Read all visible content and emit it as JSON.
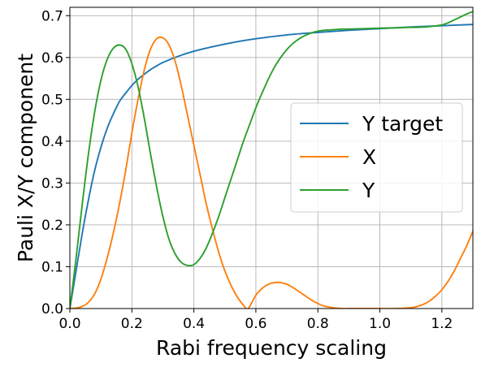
{
  "chart_data": {
    "type": "line",
    "title": "",
    "xlabel": "Rabi frequency scaling",
    "ylabel": "Pauli X/Y component",
    "xlim": [
      0.0,
      1.3
    ],
    "ylim": [
      0.0,
      0.72
    ],
    "xticks": [
      0.0,
      0.2,
      0.4,
      0.6,
      0.8,
      1.0,
      1.2
    ],
    "xtick_labels": [
      "0.0",
      "0.2",
      "0.4",
      "0.6",
      "0.8",
      "1.0",
      "1.2"
    ],
    "yticks": [
      0.0,
      0.1,
      0.2,
      0.3,
      0.4,
      0.5,
      0.6,
      0.7
    ],
    "ytick_labels": [
      "0.0",
      "0.1",
      "0.2",
      "0.3",
      "0.4",
      "0.5",
      "0.6",
      "0.7"
    ],
    "grid": true,
    "legend_position": "center-right",
    "series": [
      {
        "name": "Y target",
        "color": "#1f77b4",
        "x": [
          0.0,
          0.02,
          0.04,
          0.06,
          0.08,
          0.1,
          0.12,
          0.14,
          0.16,
          0.18,
          0.2,
          0.22,
          0.24,
          0.26,
          0.28,
          0.3,
          0.35,
          0.4,
          0.45,
          0.5,
          0.55,
          0.6,
          0.7,
          0.8,
          0.9,
          1.0,
          1.1,
          1.2,
          1.3
        ],
        "y": [
          0.0,
          0.09,
          0.18,
          0.26,
          0.33,
          0.385,
          0.43,
          0.465,
          0.495,
          0.515,
          0.533,
          0.548,
          0.56,
          0.571,
          0.58,
          0.588,
          0.603,
          0.615,
          0.624,
          0.632,
          0.639,
          0.645,
          0.654,
          0.66,
          0.665,
          0.669,
          0.673,
          0.676,
          0.679
        ]
      },
      {
        "name": "X",
        "color": "#ff7f0e",
        "x": [
          0.0,
          0.02,
          0.04,
          0.06,
          0.08,
          0.1,
          0.12,
          0.14,
          0.16,
          0.18,
          0.2,
          0.22,
          0.24,
          0.26,
          0.28,
          0.3,
          0.32,
          0.34,
          0.36,
          0.38,
          0.4,
          0.42,
          0.44,
          0.46,
          0.48,
          0.5,
          0.52,
          0.54,
          0.56,
          0.575,
          0.6,
          0.62,
          0.64,
          0.66,
          0.68,
          0.7,
          0.72,
          0.74,
          0.76,
          0.78,
          0.8,
          0.82,
          0.84,
          0.86,
          0.88,
          0.9,
          0.95,
          1.0,
          1.05,
          1.1,
          1.12,
          1.14,
          1.16,
          1.18,
          1.2,
          1.22,
          1.24,
          1.26,
          1.28,
          1.3
        ],
        "y": [
          0.0,
          0.001,
          0.005,
          0.015,
          0.035,
          0.07,
          0.12,
          0.18,
          0.25,
          0.33,
          0.42,
          0.5,
          0.57,
          0.62,
          0.645,
          0.647,
          0.63,
          0.59,
          0.53,
          0.46,
          0.39,
          0.32,
          0.25,
          0.19,
          0.135,
          0.09,
          0.055,
          0.028,
          0.008,
          0.0,
          0.032,
          0.048,
          0.058,
          0.062,
          0.062,
          0.058,
          0.05,
          0.04,
          0.03,
          0.02,
          0.012,
          0.006,
          0.003,
          0.001,
          0.0,
          0.0,
          0.0,
          0.0,
          0.0,
          0.002,
          0.005,
          0.01,
          0.018,
          0.03,
          0.045,
          0.065,
          0.09,
          0.12,
          0.15,
          0.185
        ]
      },
      {
        "name": "Y",
        "color": "#2ca02c",
        "x": [
          0.0,
          0.02,
          0.04,
          0.06,
          0.08,
          0.1,
          0.12,
          0.14,
          0.16,
          0.18,
          0.2,
          0.22,
          0.24,
          0.26,
          0.28,
          0.3,
          0.32,
          0.34,
          0.36,
          0.38,
          0.4,
          0.42,
          0.44,
          0.46,
          0.48,
          0.5,
          0.52,
          0.54,
          0.56,
          0.58,
          0.6,
          0.62,
          0.64,
          0.66,
          0.68,
          0.7,
          0.72,
          0.74,
          0.76,
          0.78,
          0.8,
          0.82,
          0.84,
          0.86,
          0.88,
          0.9,
          0.95,
          1.0,
          1.05,
          1.1,
          1.15,
          1.2,
          1.22,
          1.24,
          1.26,
          1.28,
          1.3
        ],
        "y": [
          0.0,
          0.12,
          0.25,
          0.37,
          0.47,
          0.545,
          0.595,
          0.622,
          0.63,
          0.62,
          0.585,
          0.53,
          0.455,
          0.37,
          0.29,
          0.22,
          0.165,
          0.13,
          0.11,
          0.103,
          0.105,
          0.12,
          0.145,
          0.18,
          0.22,
          0.265,
          0.31,
          0.355,
          0.4,
          0.44,
          0.48,
          0.515,
          0.548,
          0.577,
          0.6,
          0.619,
          0.634,
          0.645,
          0.653,
          0.659,
          0.663,
          0.665,
          0.666,
          0.667,
          0.668,
          0.668,
          0.669,
          0.67,
          0.671,
          0.672,
          0.673,
          0.678,
          0.683,
          0.69,
          0.697,
          0.704,
          0.71
        ]
      }
    ]
  }
}
